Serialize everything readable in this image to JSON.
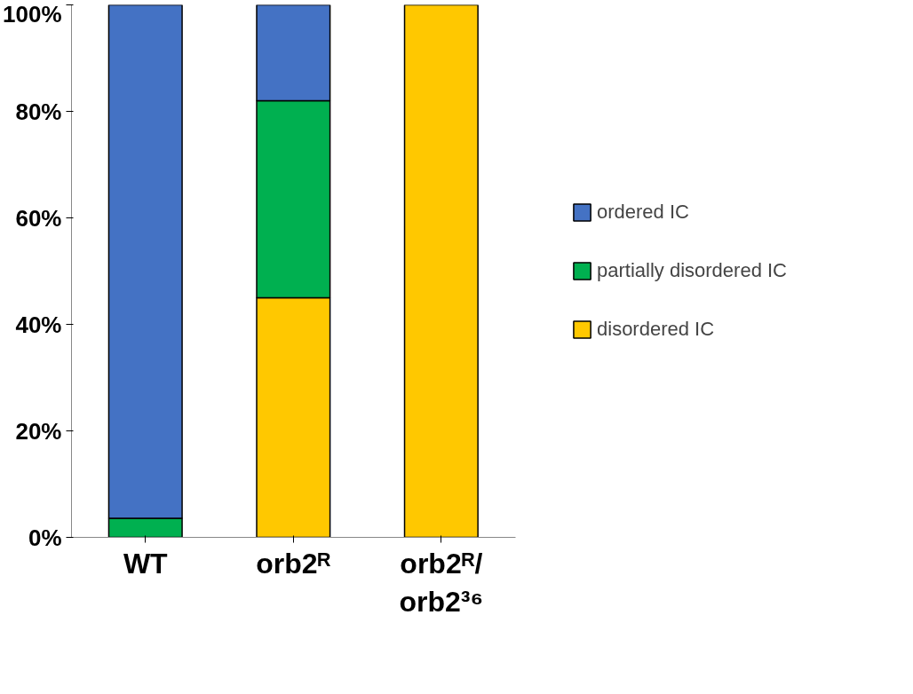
{
  "chart_data": {
    "type": "bar",
    "stacked": true,
    "categories": [
      "WT",
      "orb2ᴿ",
      "orb2ᴿ/orb2³⁶"
    ],
    "series": [
      {
        "name": "disordered IC",
        "color": "#ffc800",
        "values": [
          0,
          45,
          100
        ]
      },
      {
        "name": "partially disordered IC",
        "color": "#00b050",
        "values": [
          3.6,
          37,
          0
        ]
      },
      {
        "name": "ordered IC",
        "color": "#4472c4",
        "values": [
          96.4,
          18,
          0
        ]
      }
    ],
    "ylim": [
      0,
      100
    ],
    "yticks": [
      {
        "value": 0,
        "label": "0%"
      },
      {
        "value": 20,
        "label": "20%"
      },
      {
        "value": 40,
        "label": "40%"
      },
      {
        "value": 60,
        "label": "60%"
      },
      {
        "value": 80,
        "label": "80%"
      },
      {
        "value": 100,
        "label": "100%"
      }
    ],
    "grid": false,
    "legend": "right"
  }
}
